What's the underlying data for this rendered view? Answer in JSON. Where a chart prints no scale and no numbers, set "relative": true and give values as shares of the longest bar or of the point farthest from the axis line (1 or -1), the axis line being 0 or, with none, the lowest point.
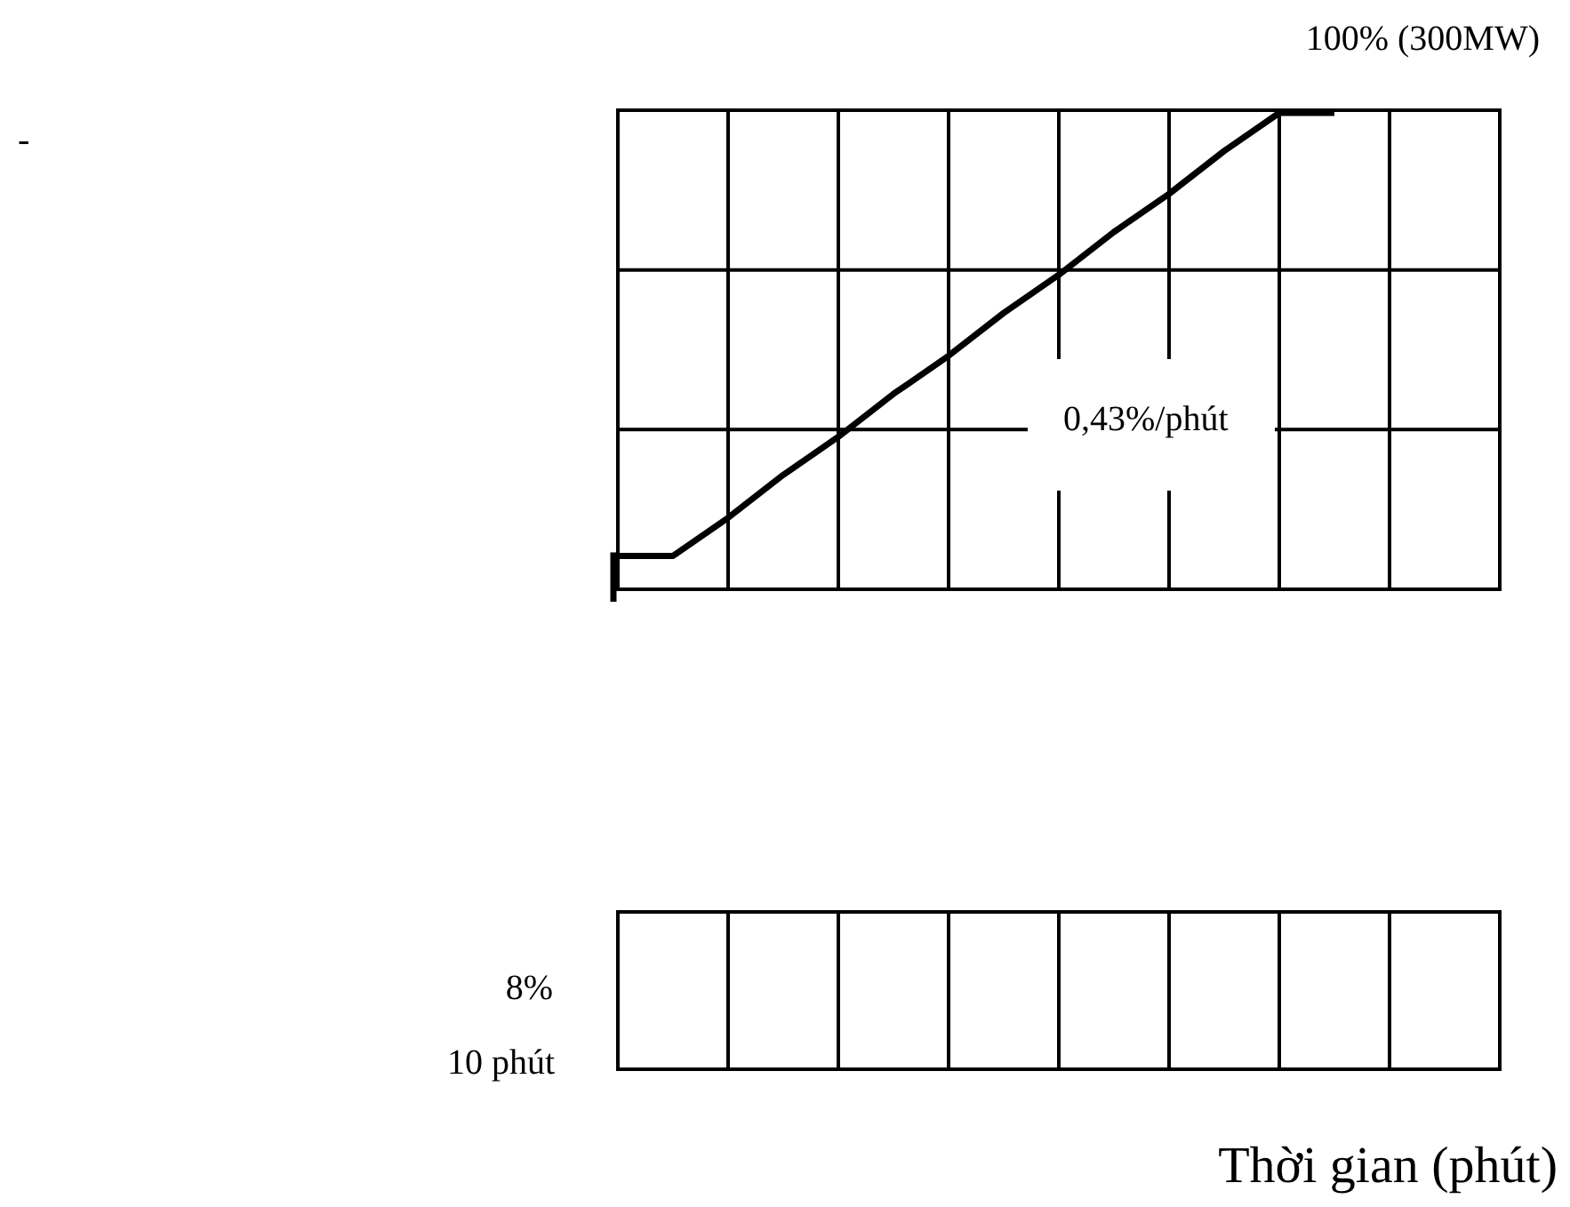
{
  "chart_data": {
    "type": "line",
    "annotations": [
      "100% (300MW)",
      "-",
      "0,43%/phút",
      "8%",
      "10 phút",
      "Thời gian (phút)"
    ],
    "categories": [
      null,
      null,
      null,
      null,
      null,
      null,
      null,
      null,
      null,
      null,
      null,
      null,
      null,
      null,
      null,
      null,
      null
    ],
    "series": [
      {
        "color": "#000000",
        "values": [
          0.07,
          0.07,
          0.15,
          0.24,
          0.32,
          0.41,
          0.49,
          0.58,
          0.66,
          0.75,
          0.83,
          0.92,
          1,
          1,
          null,
          null,
          null
        ]
      }
    ],
    "relative": true,
    "grid": true
  }
}
